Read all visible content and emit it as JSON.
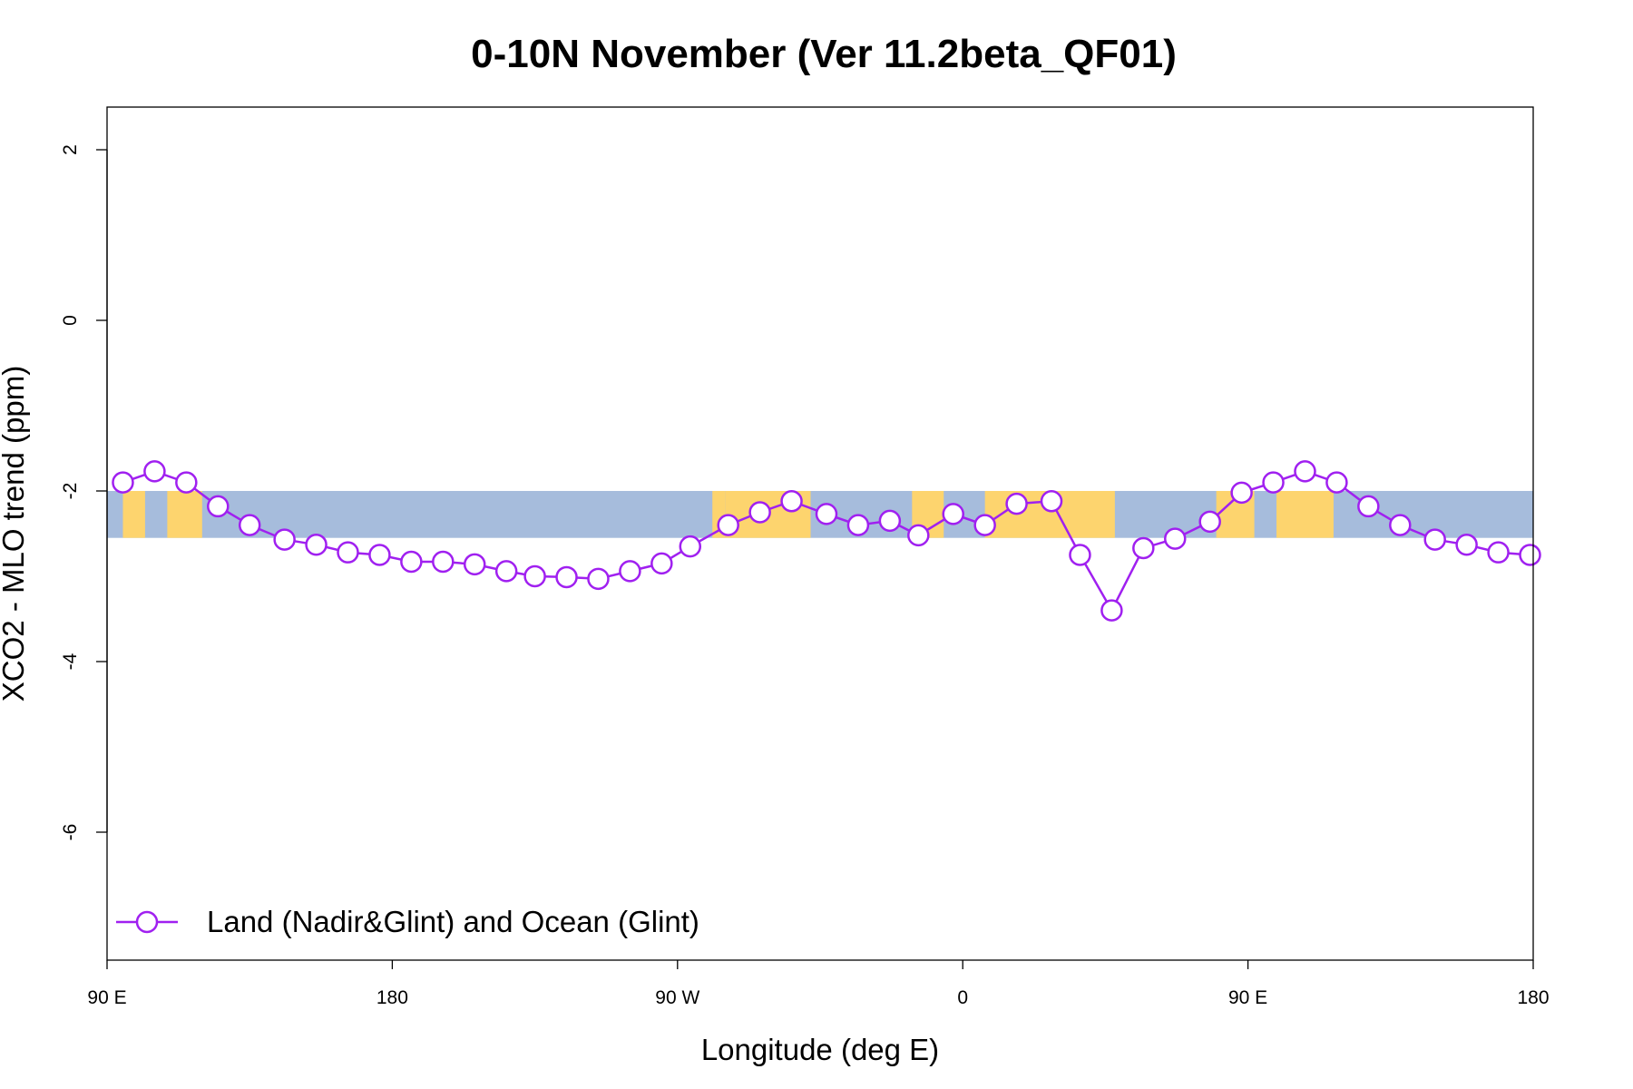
{
  "colors": {
    "series": "#a020f0",
    "ocean": "#a6bcdc",
    "land": "#fdd46e",
    "marker_fill": "#ffffff",
    "axis": "#000000"
  },
  "chart_data": {
    "type": "line",
    "title": "0-10N November (Ver 11.2beta_QF01)",
    "xlabel": "Longitude (deg E)",
    "ylabel": "XCO2 - MLO trend (ppm)",
    "xlim": [
      90,
      540
    ],
    "ylim": [
      -7.5,
      2.5
    ],
    "grid": false,
    "legend_position": "bottom-left",
    "x_ticks": [
      {
        "value": 90,
        "label": "90 E"
      },
      {
        "value": 180,
        "label": "180"
      },
      {
        "value": 270,
        "label": "90 W"
      },
      {
        "value": 360,
        "label": "0"
      },
      {
        "value": 450,
        "label": "90 E"
      },
      {
        "value": 540,
        "label": "180"
      }
    ],
    "y_ticks": [
      {
        "value": 2,
        "label": "2"
      },
      {
        "value": 0,
        "label": "0"
      },
      {
        "value": -2,
        "label": "-2"
      },
      {
        "value": -4,
        "label": "-4"
      },
      {
        "value": -6,
        "label": "-6"
      }
    ],
    "background_band": {
      "y_range": [
        -2.55,
        -2.0
      ],
      "land_x_ranges": [
        [
          95,
          102
        ],
        [
          109,
          120
        ],
        [
          281,
          285
        ],
        [
          285,
          312
        ],
        [
          344,
          354
        ],
        [
          367,
          408
        ],
        [
          440,
          452
        ],
        [
          459,
          477
        ]
      ]
    },
    "series": [
      {
        "name": "Land (Nadir&Glint) and Ocean (Glint)",
        "x": [
          95,
          105,
          115,
          125,
          135,
          146,
          156,
          166,
          176,
          186,
          196,
          206,
          216,
          225,
          235,
          245,
          255,
          265,
          274,
          286,
          296,
          306,
          317,
          327,
          337,
          346,
          357,
          367,
          377,
          388,
          397,
          407,
          417,
          427,
          438,
          448,
          458,
          468,
          478,
          488,
          498,
          509,
          519,
          529,
          539
        ],
        "values": [
          -1.9,
          -1.77,
          -1.9,
          -2.18,
          -2.4,
          -2.57,
          -2.63,
          -2.72,
          -2.75,
          -2.83,
          -2.83,
          -2.86,
          -2.94,
          -3.0,
          -3.01,
          -3.03,
          -2.94,
          -2.85,
          -2.65,
          -2.4,
          -2.25,
          -2.12,
          -2.27,
          -2.4,
          -2.35,
          -2.52,
          -2.27,
          -2.4,
          -2.15,
          -2.12,
          -2.75,
          -3.4,
          -2.67,
          -2.56,
          -2.36,
          -2.02,
          -1.9,
          -1.77,
          -1.9,
          -2.18,
          -2.4,
          -2.57,
          -2.63,
          -2.72,
          -2.75
        ]
      }
    ]
  }
}
